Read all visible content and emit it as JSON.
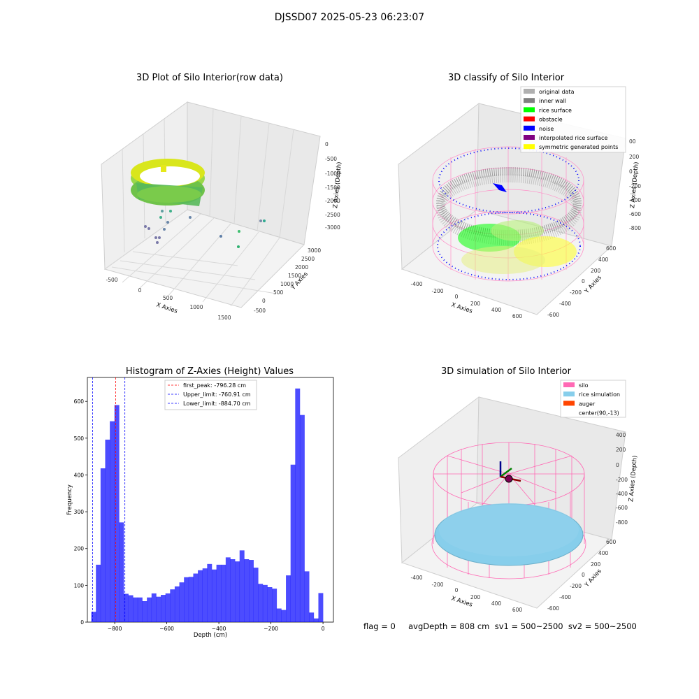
{
  "suptitle": "DJSSD07 2025-05-23 06:23:07",
  "panels": {
    "raw": {
      "title": "3D Plot of Silo Interior(row data)",
      "xlabel": "X Axies",
      "ylabel": "Y Axies",
      "zlabel": "Z Axies (Depth)",
      "xticks": [
        "-500",
        "0",
        "500",
        "1000",
        "1500"
      ],
      "yticks": [
        "-500",
        "0",
        "500",
        "1000",
        "1500",
        "2000",
        "2500",
        "3000"
      ],
      "zticks": [
        "0",
        "-500",
        "-1000",
        "-1500",
        "-2000",
        "-2500",
        "-3000"
      ]
    },
    "classify": {
      "title": "3D classify of Silo Interior",
      "xlabel": "X Axies",
      "ylabel": "Y Axies",
      "zlabel": "Z Axies (Depth)",
      "xticks": [
        "-400",
        "-200",
        "0",
        "200",
        "400",
        "600"
      ],
      "yticks": [
        "-600",
        "-400",
        "-200",
        "0",
        "200",
        "400",
        "600"
      ],
      "zticks": [
        "200",
        "0",
        "-200",
        "-400",
        "-600",
        "-800"
      ],
      "ztop_partial": "00",
      "legend": [
        {
          "label": "original data",
          "color": "#b0b0b0"
        },
        {
          "label": "inner wall",
          "color": "#808080"
        },
        {
          "label": "rice surface",
          "color": "#00ff00"
        },
        {
          "label": "obstacle",
          "color": "#ff0000"
        },
        {
          "label": "noise",
          "color": "#0000ff"
        },
        {
          "label": "interpolated rice surface",
          "color": "#800080"
        },
        {
          "label": "symmetric generated points",
          "color": "#ffff00"
        }
      ]
    },
    "simulation": {
      "title": "3D simulation of Silo Interior",
      "xlabel": "X Axies",
      "ylabel": "Y Axies",
      "zlabel": "Z Axies (Depth)",
      "xticks": [
        "-400",
        "-200",
        "0",
        "200",
        "400",
        "600"
      ],
      "yticks": [
        "-600",
        "-400",
        "-200",
        "0",
        "200",
        "400",
        "600"
      ],
      "zticks": [
        "400",
        "200",
        "0",
        "-200",
        "-400",
        "-600",
        "-800"
      ],
      "legend": [
        {
          "label": "silo",
          "color": "#ff69b4"
        },
        {
          "label": "rice simulation",
          "color": "#87ceeb"
        },
        {
          "label": "auger",
          "color": "#ff4500"
        },
        {
          "label": "center(90,-13)",
          "color": "none"
        }
      ]
    }
  },
  "chart_data": {
    "type": "bar",
    "title": "Histogram of Z-Axies (Height) Values",
    "xlabel": "Depth (cm)",
    "ylabel": "Frequency",
    "xlim": [
      -905,
      40
    ],
    "ylim": [
      0,
      665
    ],
    "xticks": [
      -800,
      -600,
      -400,
      -200,
      0
    ],
    "yticks": [
      0,
      100,
      200,
      300,
      400,
      500,
      600
    ],
    "bar_color": "#0000ff",
    "bin_start": -890,
    "bin_width": 17.8,
    "values": [
      28,
      156,
      418,
      496,
      546,
      590,
      271,
      77,
      73,
      67,
      67,
      57,
      67,
      78,
      69,
      74,
      78,
      89,
      97,
      108,
      122,
      123,
      132,
      141,
      146,
      158,
      143,
      156,
      156,
      176,
      171,
      165,
      195,
      171,
      169,
      148,
      104,
      101,
      95,
      91,
      37,
      33,
      127,
      428,
      635,
      563,
      138,
      26,
      10,
      79
    ],
    "vlines": [
      {
        "label": "first_peak: -796.28 cm",
        "x": -796.28,
        "color": "#ff0000"
      },
      {
        "label": "Upper_limit: -760.91 cm",
        "x": -760.91,
        "color": "#0000ff"
      },
      {
        "label": "Lower_limit: -884.70 cm",
        "x": -884.7,
        "color": "#0000ff"
      }
    ]
  },
  "status_line": "flag = 0     avgDepth = 808 cm  sv1 = 500~2500  sv2 = 500~2500"
}
